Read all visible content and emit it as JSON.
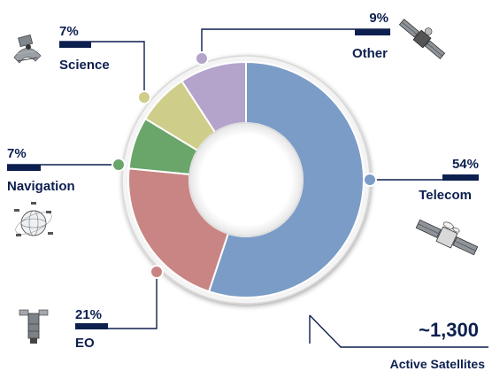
{
  "chart_data": {
    "type": "pie",
    "variant": "donut",
    "categories": [
      "Telecom",
      "EO",
      "Navigation",
      "Science",
      "Other"
    ],
    "values": [
      54,
      21,
      7,
      7,
      9
    ],
    "value_labels": [
      "54%",
      "21%",
      "7%",
      "7%",
      "9%"
    ],
    "colors": [
      "#7b9cc6",
      "#c98583",
      "#6aa56a",
      "#cfcd8a",
      "#b4a3cb"
    ],
    "icons": [
      "telecom-satellite-icon",
      "eo-satellite-icon",
      "navigation-globe-icon",
      "science-satellite-icon",
      "other-satellite-icon"
    ],
    "total_value": "~1,300",
    "total_label": "Active Satellites",
    "legend": "callouts",
    "accent_color": "#0d1f4f"
  }
}
